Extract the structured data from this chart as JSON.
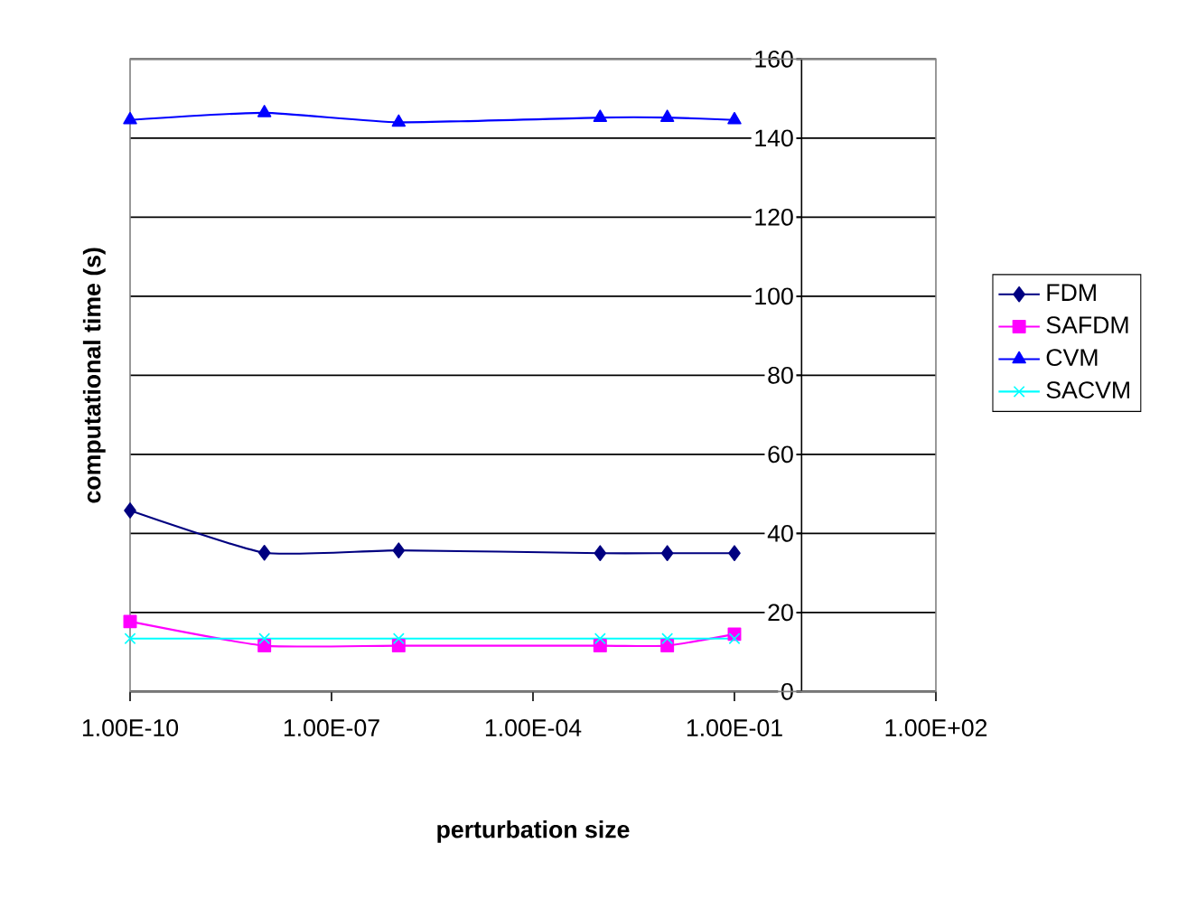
{
  "chart_data": {
    "type": "line",
    "xlabel": "perturbation size",
    "ylabel": "computational time (s)",
    "x": [
      1e-10,
      1e-08,
      1e-06,
      0.001,
      0.01,
      0.1
    ],
    "series": [
      {
        "name": "FDM",
        "color": "#000080",
        "marker": "diamond",
        "values": [
          45.8,
          35.1,
          35.7,
          35,
          35,
          35
        ]
      },
      {
        "name": "SAFDM",
        "color": "#ff00ff",
        "marker": "square",
        "values": [
          17.7,
          11.6,
          11.6,
          11.6,
          11.6,
          14.5
        ]
      },
      {
        "name": "CVM",
        "color": "#0000ff",
        "marker": "triangle",
        "values": [
          144.6,
          146.4,
          144,
          145.2,
          145.2,
          144.6
        ]
      },
      {
        "name": "SACVM",
        "color": "#00ffff",
        "marker": "cross",
        "values": [
          13.4,
          13.4,
          13.4,
          13.4,
          13.4,
          13.4
        ]
      }
    ],
    "log": "x",
    "xlim": [
      1e-10,
      100.0
    ],
    "xticks": [
      {
        "value": 1e-10,
        "label": "1.00E-10"
      },
      {
        "value": 1e-07,
        "label": "1.00E-07"
      },
      {
        "value": 0.0001,
        "label": "1.00E-04"
      },
      {
        "value": 0.1,
        "label": "1.00E-01"
      },
      {
        "value": 100.0,
        "label": "1.00E+02"
      }
    ],
    "ylim": [
      0,
      160
    ],
    "yticks": [
      0,
      20,
      40,
      60,
      80,
      100,
      120,
      140,
      160
    ],
    "grid": "y",
    "legend": "right",
    "line_style": "solid"
  }
}
